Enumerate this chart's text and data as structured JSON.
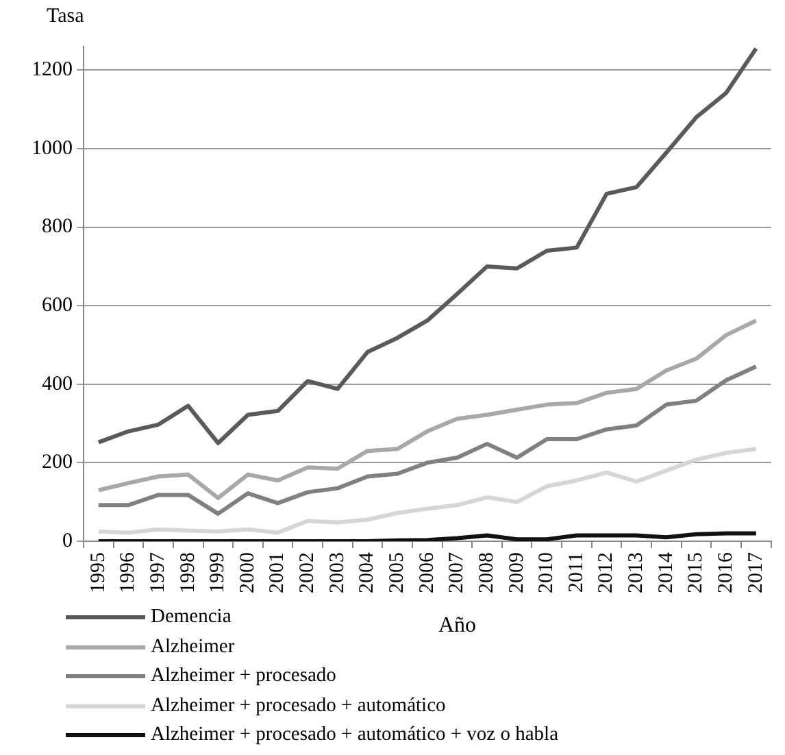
{
  "chart_data": {
    "type": "line",
    "xlabel": "Año",
    "ylabel": "Tasa",
    "categories": [
      "1995",
      "1996",
      "1997",
      "1998",
      "1999",
      "2000",
      "2001",
      "2002",
      "2003",
      "2004",
      "2005",
      "2006",
      "2007",
      "2008",
      "2009",
      "2010",
      "2011",
      "2012",
      "2013",
      "2014",
      "2015",
      "2016",
      "2017"
    ],
    "series": [
      {
        "name": "Demencia",
        "color": "#5a5a5a",
        "values": [
          252,
          280,
          297,
          345,
          250,
          322,
          332,
          408,
          388,
          482,
          518,
          562,
          630,
          700,
          695,
          740,
          748,
          885,
          902,
          990,
          1080,
          1142,
          1255
        ]
      },
      {
        "name": "Alzheimer",
        "color": "#a8a8a8",
        "values": [
          130,
          148,
          165,
          170,
          110,
          170,
          155,
          188,
          185,
          230,
          235,
          280,
          312,
          322,
          335,
          348,
          352,
          378,
          388,
          435,
          465,
          525,
          562
        ]
      },
      {
        "name": "Alzheimer + procesado",
        "color": "#808080",
        "values": [
          92,
          92,
          118,
          118,
          70,
          122,
          97,
          125,
          135,
          165,
          172,
          200,
          213,
          248,
          213,
          260,
          260,
          285,
          295,
          348,
          358,
          410,
          445
        ]
      },
      {
        "name": "Alzheimer + procesado + automático",
        "color": "#d6d6d6",
        "values": [
          25,
          22,
          30,
          27,
          25,
          30,
          22,
          52,
          48,
          55,
          72,
          83,
          92,
          112,
          100,
          140,
          155,
          175,
          152,
          180,
          208,
          225,
          235
        ]
      },
      {
        "name": "Alzheimer + procesado + automático + voz o habla",
        "color": "#111111",
        "values": [
          0,
          0,
          0,
          0,
          0,
          0,
          0,
          0,
          0,
          0,
          2,
          3,
          8,
          15,
          5,
          5,
          15,
          15,
          15,
          10,
          18,
          20,
          20
        ]
      }
    ],
    "ylim": [
      0,
      1260
    ],
    "yticks": [
      0,
      200,
      400,
      600,
      800,
      1000,
      1200
    ],
    "grid": "y",
    "legend": "bottom left",
    "marker": "none",
    "line_style": "solid"
  }
}
